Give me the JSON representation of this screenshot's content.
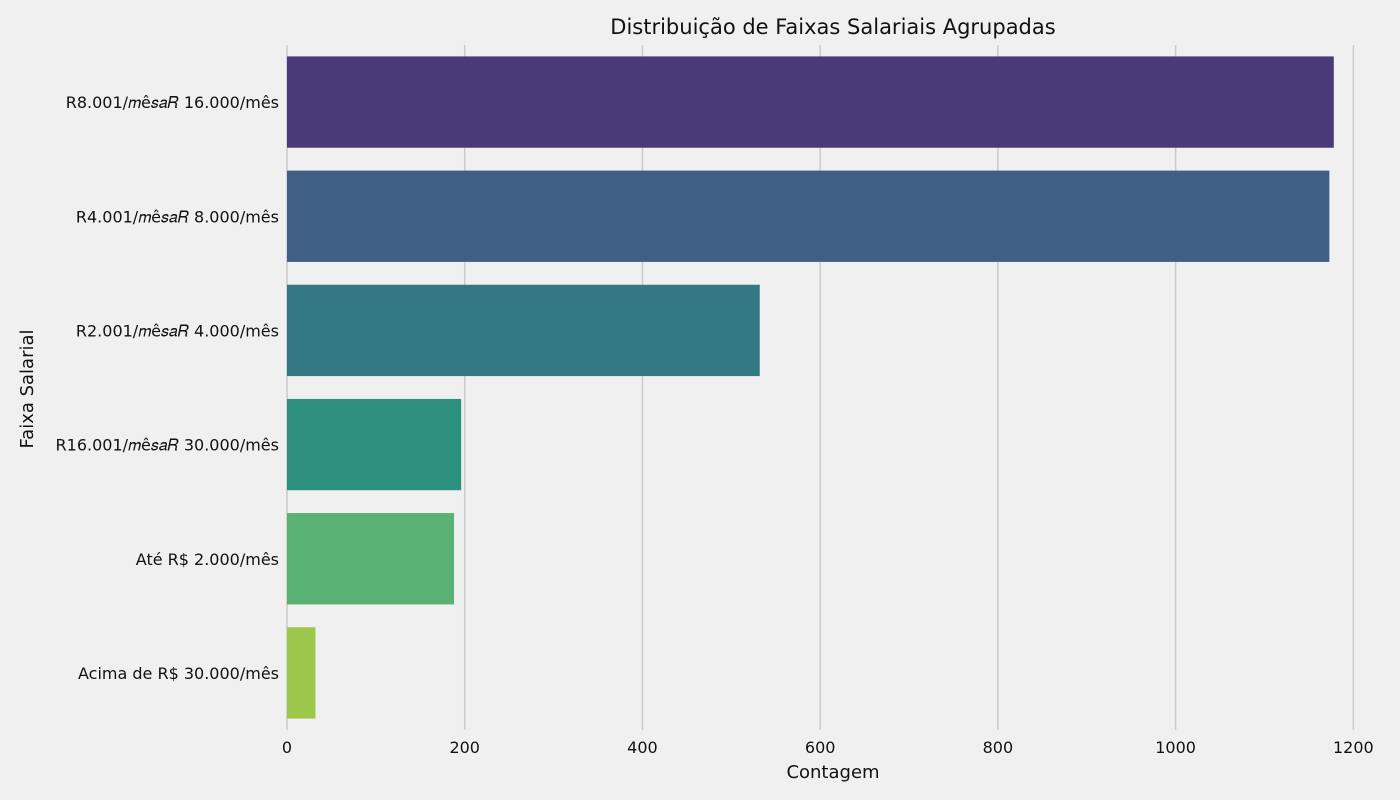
{
  "chart_data": {
    "type": "bar",
    "orientation": "horizontal",
    "title": "Distribuição de Faixas Salariais Agrupadas",
    "xlabel": "Contagem",
    "ylabel": "Faixa Salarial",
    "categories": [
      "R8.001/𝑚ê𝑠𝑎𝑅 16.000/mês",
      "R4.001/𝑚ê𝑠𝑎𝑅 8.000/mês",
      "R2.001/𝑚ê𝑠𝑎𝑅 4.000/mês",
      "R16.001/𝑚ê𝑠𝑎𝑅 30.000/mês",
      "Até R$ 2.000/mês",
      "Acima de R$ 30.000/mês"
    ],
    "values": [
      1178,
      1173,
      532,
      196,
      188,
      32
    ],
    "xlim": [
      0,
      1230
    ],
    "xticks": [
      0,
      200,
      400,
      600,
      800,
      1000,
      1200
    ],
    "grid": "vertical",
    "colors": [
      "#4a3b78",
      "#3f5f84",
      "#347883",
      "#2e917f",
      "#59b273",
      "#9cc74a"
    ],
    "background": "#f0f0f0"
  }
}
